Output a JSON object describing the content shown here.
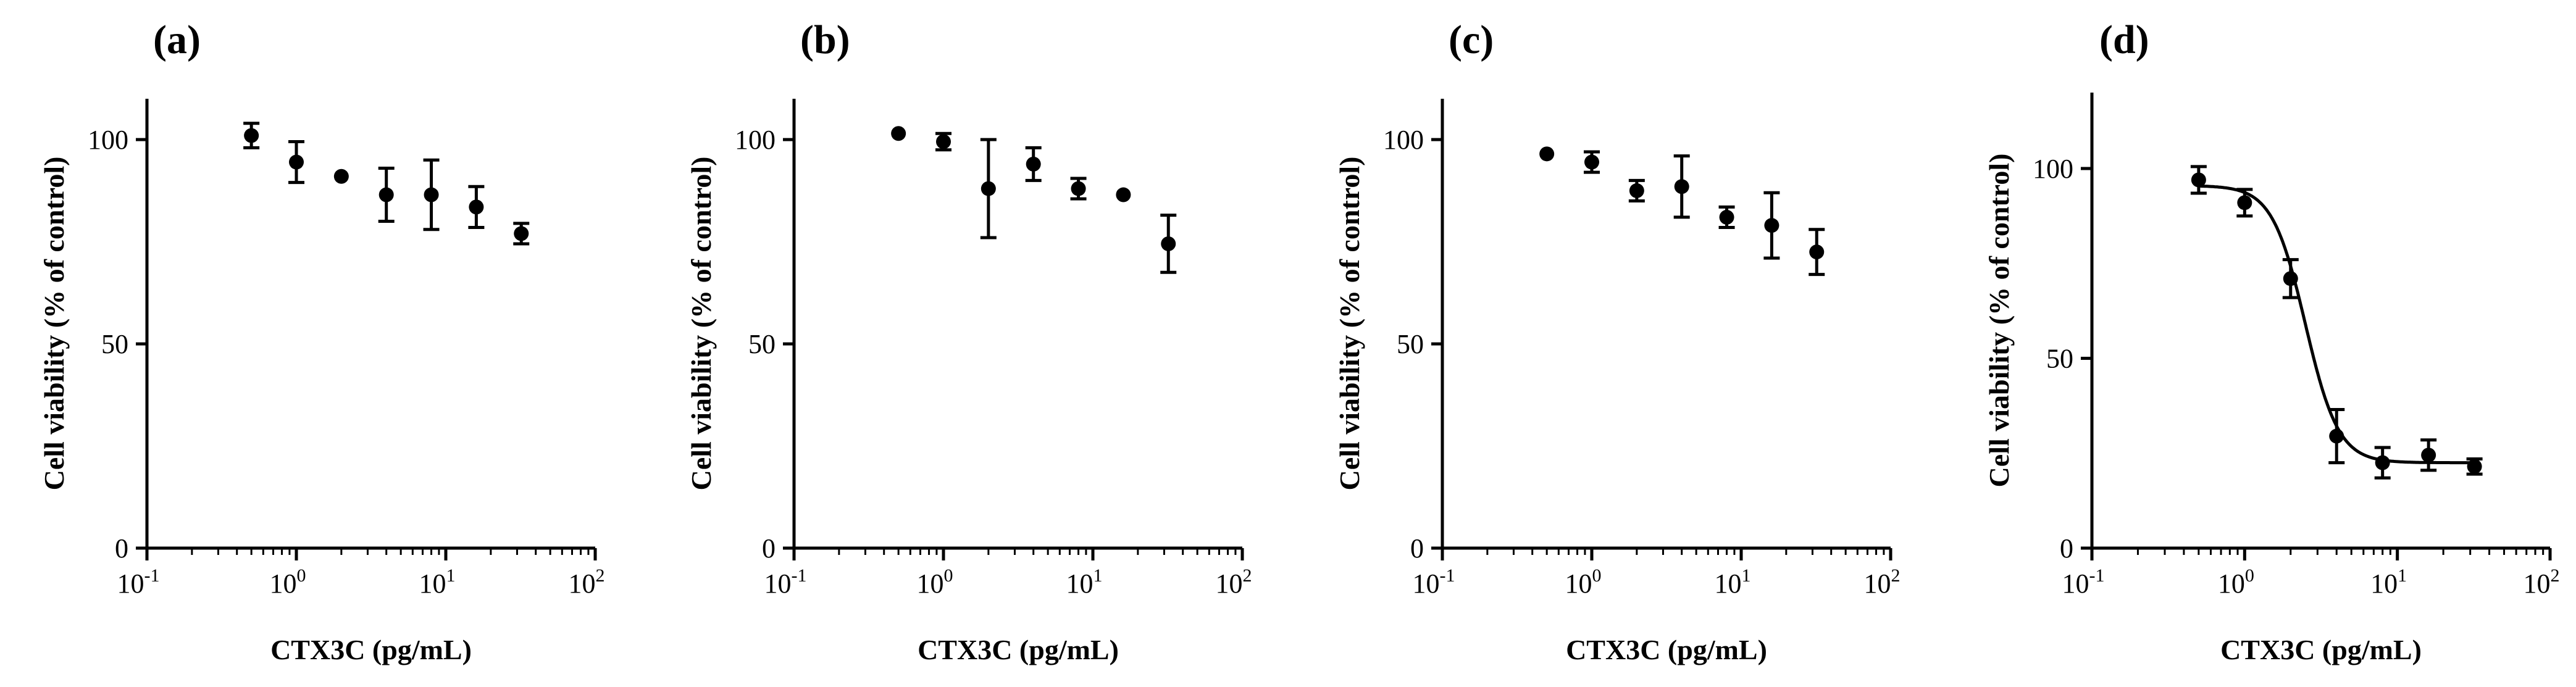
{
  "chart_data": [
    {
      "panel": "(a)",
      "type": "scatter",
      "xscale": "log",
      "xlim": [
        0.1,
        100
      ],
      "ylim": [
        0,
        110
      ],
      "xticks": [
        {
          "base": "10",
          "exp": "-1"
        },
        {
          "base": "10",
          "exp": "0"
        },
        {
          "base": "10",
          "exp": "1"
        },
        {
          "base": "10",
          "exp": "2"
        }
      ],
      "yticks": [
        "0",
        "50",
        "100"
      ],
      "xlabel": "CTX3C (pg/mL)",
      "ylabel": "Cell viability (% of control)",
      "series": [
        {
          "name": "CTX3C",
          "x": [
            0.5,
            1,
            2,
            4,
            8,
            16,
            32
          ],
          "y": [
            101,
            94.5,
            91,
            86.5,
            86.5,
            83.5,
            77
          ],
          "err": [
            3,
            5,
            0,
            6.5,
            8.5,
            5,
            2.5
          ]
        }
      ],
      "fit": null
    },
    {
      "panel": "(b)",
      "type": "scatter",
      "xscale": "log",
      "xlim": [
        0.1,
        100
      ],
      "ylim": [
        0,
        110
      ],
      "xticks": [
        {
          "base": "10",
          "exp": "-1"
        },
        {
          "base": "10",
          "exp": "0"
        },
        {
          "base": "10",
          "exp": "1"
        },
        {
          "base": "10",
          "exp": "2"
        }
      ],
      "yticks": [
        "0",
        "50",
        "100"
      ],
      "xlabel": "CTX3C (pg/mL)",
      "ylabel": "Cell viability (% of control)",
      "series": [
        {
          "name": "CTX3C",
          "x": [
            0.5,
            1,
            2,
            4,
            8,
            16,
            32
          ],
          "y": [
            101.5,
            99.5,
            88,
            94,
            88,
            86.5,
            74.5
          ],
          "err": [
            0,
            2,
            12,
            4,
            2.5,
            0,
            7
          ]
        }
      ],
      "fit": null
    },
    {
      "panel": "(c)",
      "type": "scatter",
      "xscale": "log",
      "xlim": [
        0.1,
        100
      ],
      "ylim": [
        0,
        110
      ],
      "xticks": [
        {
          "base": "10",
          "exp": "-1"
        },
        {
          "base": "10",
          "exp": "0"
        },
        {
          "base": "10",
          "exp": "1"
        },
        {
          "base": "10",
          "exp": "2"
        }
      ],
      "yticks": [
        "0",
        "50",
        "100"
      ],
      "xlabel": "CTX3C (pg/mL)",
      "ylabel": "Cell viability (% of control)",
      "series": [
        {
          "name": "CTX3C",
          "x": [
            0.5,
            1,
            2,
            4,
            8,
            16,
            32
          ],
          "y": [
            96.5,
            94.5,
            87.5,
            88.5,
            81,
            79,
            72.5
          ],
          "err": [
            0,
            2.5,
            2.5,
            7.5,
            2.5,
            8,
            5.5
          ]
        }
      ],
      "fit": null
    },
    {
      "panel": "(d)",
      "type": "scatter",
      "xscale": "log",
      "xlim": [
        0.1,
        100
      ],
      "ylim": [
        0,
        120
      ],
      "xticks": [
        {
          "base": "10",
          "exp": "-1"
        },
        {
          "base": "10",
          "exp": "0"
        },
        {
          "base": "10",
          "exp": "1"
        },
        {
          "base": "10",
          "exp": "2"
        }
      ],
      "yticks": [
        "0",
        "50",
        "100"
      ],
      "xlabel": "CTX3C (pg/mL)",
      "ylabel": "Cell viability (% of control)",
      "series": [
        {
          "name": "CTX3C",
          "x": [
            0.5,
            1,
            2,
            4,
            8,
            16,
            32
          ],
          "y": [
            97,
            91,
            71,
            29.5,
            22.5,
            24.5,
            21.5
          ],
          "err": [
            3.5,
            3.5,
            5,
            7,
            4,
            4,
            2
          ]
        }
      ],
      "fit": {
        "type": "sigmoidal dose-response",
        "top": 95.5,
        "bottom": 22.5,
        "ec50": 2.5,
        "hill": 4
      }
    }
  ]
}
